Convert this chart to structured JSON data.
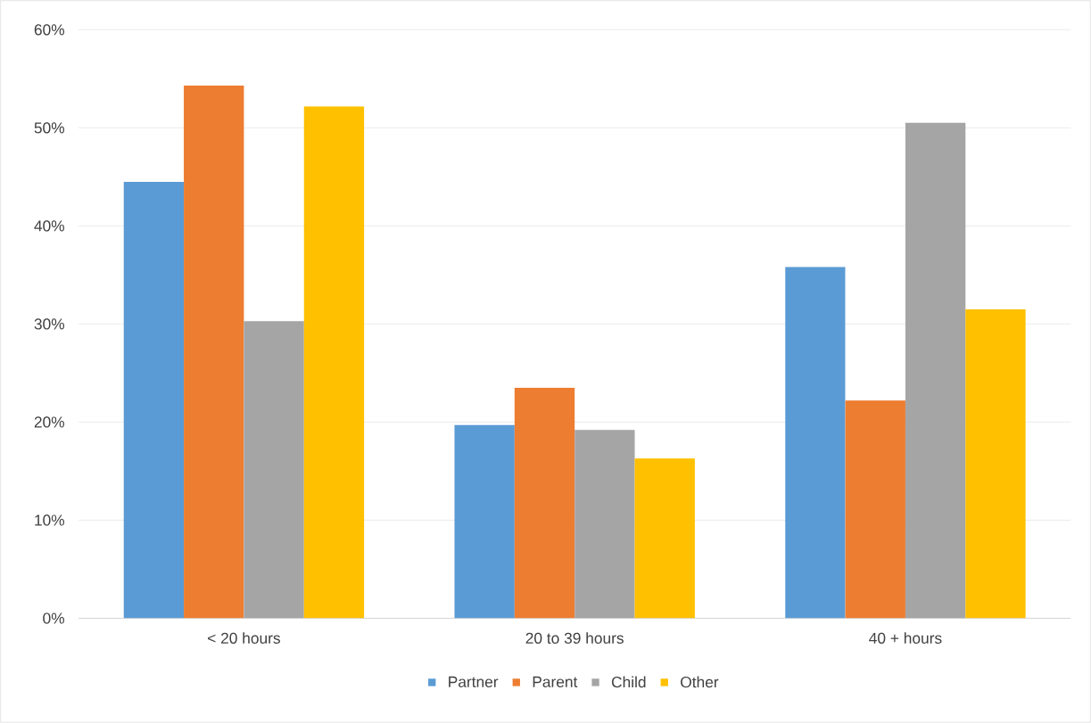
{
  "chart_data": {
    "type": "bar",
    "categories": [
      "< 20 hours",
      "20 to 39 hours",
      "40 + hours"
    ],
    "series": [
      {
        "name": "Partner",
        "color": "#5b9bd5",
        "values": [
          44.5,
          19.7,
          35.8
        ]
      },
      {
        "name": "Parent",
        "color": "#ed7d31",
        "values": [
          54.3,
          23.5,
          22.2
        ]
      },
      {
        "name": "Child",
        "color": "#a5a5a5",
        "values": [
          30.3,
          19.2,
          50.5
        ]
      },
      {
        "name": "Other",
        "color": "#ffc000",
        "values": [
          52.2,
          16.3,
          31.5
        ]
      }
    ],
    "ylim": [
      0,
      60
    ],
    "yticks": [
      {
        "value": 0,
        "label": "0%"
      },
      {
        "value": 10,
        "label": "10%"
      },
      {
        "value": 20,
        "label": "20%"
      },
      {
        "value": 30,
        "label": "30%"
      },
      {
        "value": 40,
        "label": "40%"
      },
      {
        "value": 50,
        "label": "50%"
      },
      {
        "value": 60,
        "label": "60%"
      }
    ],
    "grid": "y",
    "legend": "bottom"
  }
}
